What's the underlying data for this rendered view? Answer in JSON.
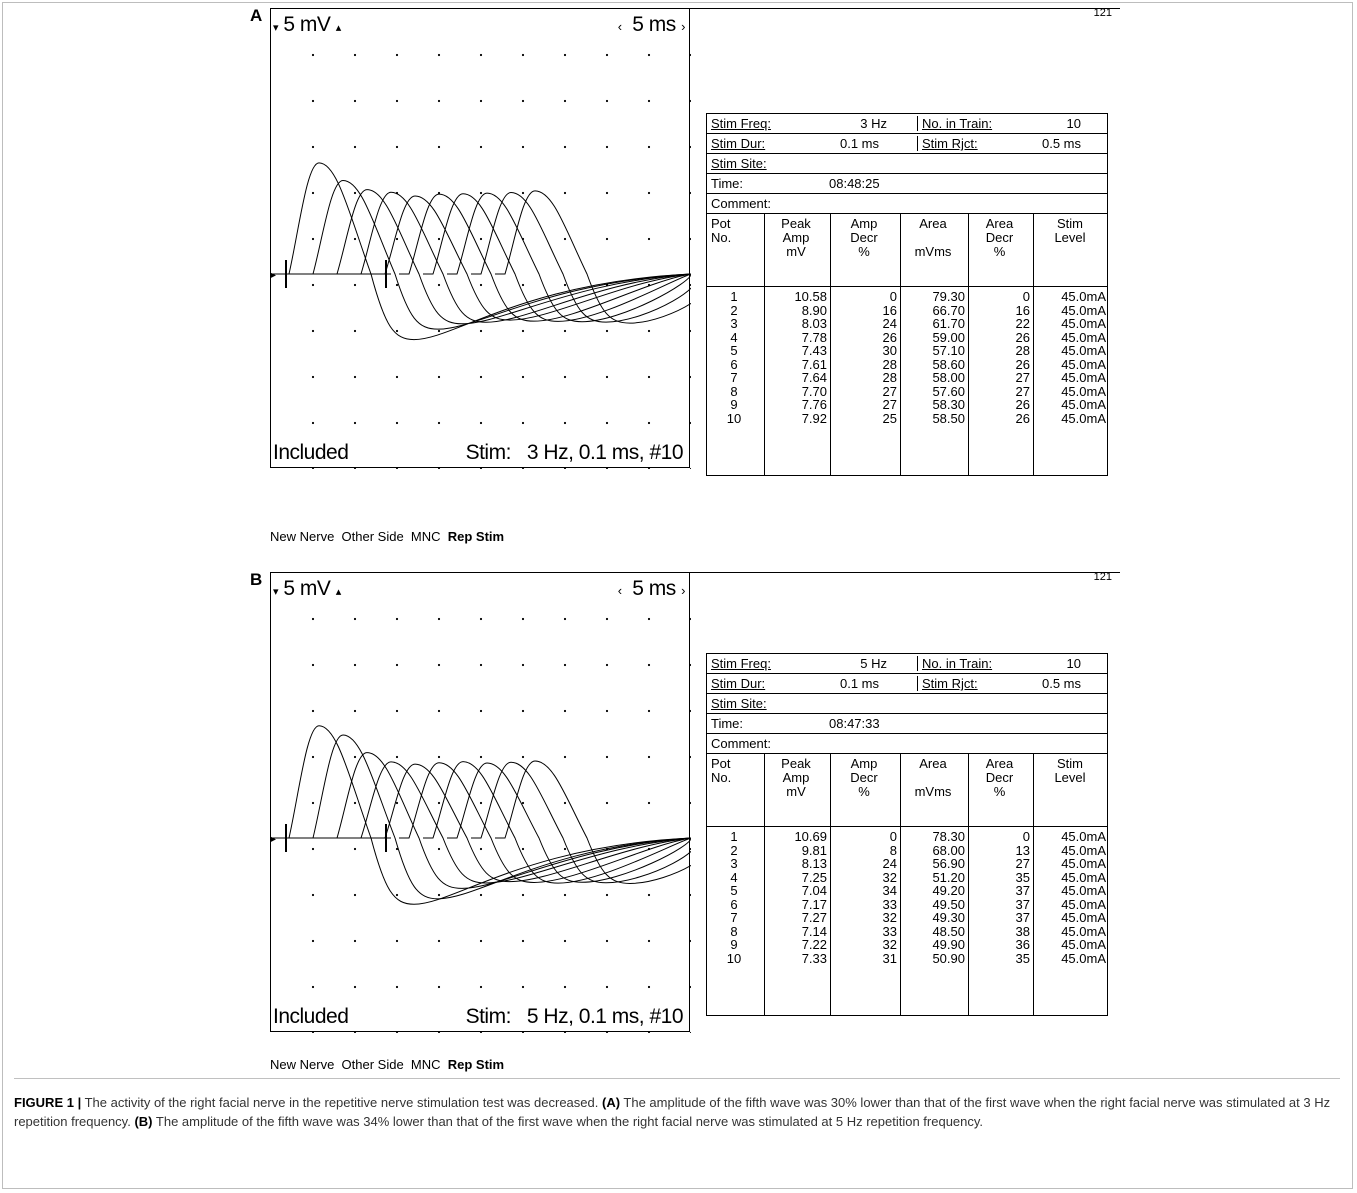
{
  "panels": [
    {
      "letter": "A",
      "scale_left": "5 mV",
      "scale_right": "5 ms",
      "included": "Included",
      "stim_label": "Stim:",
      "stim_value": "3 Hz, 0.1 ms, #10",
      "menu": [
        "New Nerve",
        "Other Side",
        "MNC",
        "Rep Stim"
      ],
      "page_num": "121",
      "info": {
        "stim_freq_label": "Stim Freq:",
        "stim_freq": "3 Hz",
        "no_in_train_label": "No. in Train:",
        "no_in_train": "10",
        "stim_dur_label": "Stim Dur:",
        "stim_dur": "0.1 ms",
        "stim_rjct_label": "Stim Rjct:",
        "stim_rjct": "0.5 ms",
        "stim_site_label": "Stim Site:",
        "time_label": "Time:",
        "time": "08:48:25",
        "comment_label": "Comment:"
      },
      "headers": [
        "Pot\nNo.",
        "Peak\nAmp\nmV",
        "Amp\nDecr\n%",
        "Area\n\nmVms",
        "Area\nDecr\n%",
        "Stim\nLevel"
      ],
      "rows": [
        [
          "1",
          "10.58",
          "0",
          "79.30",
          "0",
          "45.0mA"
        ],
        [
          "2",
          "8.90",
          "16",
          "66.70",
          "16",
          "45.0mA"
        ],
        [
          "3",
          "8.03",
          "24",
          "61.70",
          "22",
          "45.0mA"
        ],
        [
          "4",
          "7.78",
          "26",
          "59.00",
          "26",
          "45.0mA"
        ],
        [
          "5",
          "7.43",
          "30",
          "57.10",
          "28",
          "45.0mA"
        ],
        [
          "6",
          "7.61",
          "28",
          "58.60",
          "26",
          "45.0mA"
        ],
        [
          "7",
          "7.64",
          "28",
          "58.00",
          "27",
          "45.0mA"
        ],
        [
          "8",
          "7.70",
          "27",
          "57.60",
          "27",
          "45.0mA"
        ],
        [
          "9",
          "7.76",
          "27",
          "58.30",
          "26",
          "45.0mA"
        ],
        [
          "10",
          "7.92",
          "25",
          "58.50",
          "26",
          "45.0mA"
        ]
      ]
    },
    {
      "letter": "B",
      "scale_left": "5 mV",
      "scale_right": "5 ms",
      "included": "Included",
      "stim_label": "Stim:",
      "stim_value": "5 Hz, 0.1 ms, #10",
      "menu": [
        "New Nerve",
        "Other Side",
        "MNC",
        "Rep Stim"
      ],
      "page_num": "121",
      "info": {
        "stim_freq_label": "Stim Freq:",
        "stim_freq": "5 Hz",
        "no_in_train_label": "No. in Train:",
        "no_in_train": "10",
        "stim_dur_label": "Stim Dur:",
        "stim_dur": "0.1 ms",
        "stim_rjct_label": "Stim Rjct:",
        "stim_rjct": "0.5 ms",
        "stim_site_label": "Stim Site:",
        "time_label": "Time:",
        "time": "08:47:33",
        "comment_label": "Comment:"
      },
      "headers": [
        "Pot\nNo.",
        "Peak\nAmp\nmV",
        "Amp\nDecr\n%",
        "Area\n\nmVms",
        "Area\nDecr\n%",
        "Stim\nLevel"
      ],
      "rows": [
        [
          "1",
          "10.69",
          "0",
          "78.30",
          "0",
          "45.0mA"
        ],
        [
          "2",
          "9.81",
          "8",
          "68.00",
          "13",
          "45.0mA"
        ],
        [
          "3",
          "8.13",
          "24",
          "56.90",
          "27",
          "45.0mA"
        ],
        [
          "4",
          "7.25",
          "32",
          "51.20",
          "35",
          "45.0mA"
        ],
        [
          "5",
          "7.04",
          "34",
          "49.20",
          "37",
          "45.0mA"
        ],
        [
          "6",
          "7.17",
          "33",
          "49.50",
          "37",
          "45.0mA"
        ],
        [
          "7",
          "7.27",
          "32",
          "49.30",
          "37",
          "45.0mA"
        ],
        [
          "8",
          "7.14",
          "33",
          "48.50",
          "38",
          "45.0mA"
        ],
        [
          "9",
          "7.22",
          "32",
          "49.90",
          "36",
          "45.0mA"
        ],
        [
          "10",
          "7.33",
          "31",
          "50.90",
          "35",
          "45.0mA"
        ]
      ]
    }
  ],
  "caption": {
    "label": "FIGURE 1 |",
    "intro": "The activity of the right facial nerve in the repetitive nerve stimulation test was decreased.",
    "a_label": "(A)",
    "a_text": "The amplitude of the fifth wave was 30% lower than that of the first wave when the right facial nerve was stimulated at 3 Hz repetition frequency.",
    "b_label": "(B)",
    "b_text": "The amplitude of the fifth wave was 34% lower than that of the first wave when the right facial nerve was stimulated at 5 Hz repetition frequency."
  }
}
